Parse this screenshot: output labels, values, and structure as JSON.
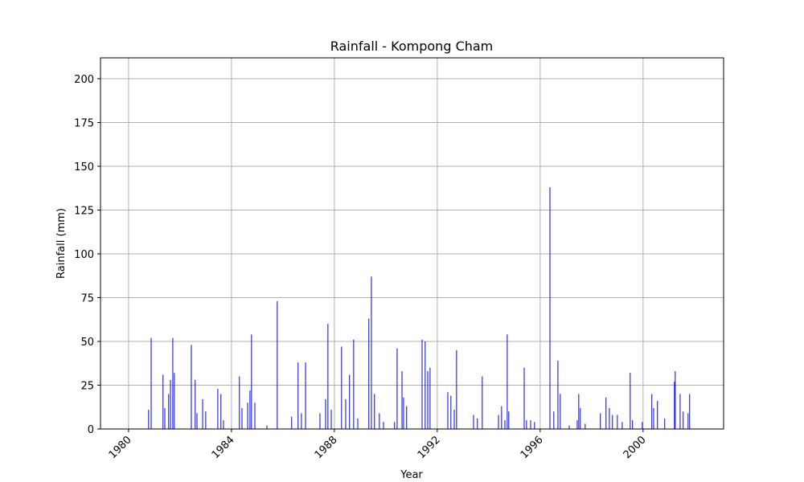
{
  "chart_data": {
    "type": "bar",
    "title": "Rainfall - Kompong Cham",
    "x_label": "Year",
    "y_label": "Rainfall (mm)",
    "color": "#0000ff",
    "grid": true,
    "x": [
      1980.78,
      1980.88,
      1981.34,
      1981.41,
      1981.56,
      1981.63,
      1981.72,
      1981.78,
      1982.44,
      1982.59,
      1982.66,
      1982.88,
      1983.0,
      1983.47,
      1983.59,
      1983.69,
      1984.31,
      1984.41,
      1984.63,
      1984.72,
      1984.78,
      1984.91,
      1985.38,
      1985.78,
      1986.34,
      1986.59,
      1986.72,
      1986.88,
      1987.44,
      1987.66,
      1987.75,
      1987.88,
      1988.28,
      1988.44,
      1988.59,
      1988.75,
      1988.91,
      1989.34,
      1989.44,
      1989.56,
      1989.75,
      1989.91,
      1990.34,
      1990.44,
      1990.63,
      1990.69,
      1990.81,
      1991.41,
      1991.53,
      1991.63,
      1991.72,
      1992.41,
      1992.53,
      1992.66,
      1992.75,
      1993.41,
      1993.56,
      1993.75,
      1994.38,
      1994.5,
      1994.63,
      1994.72,
      1994.78,
      1995.38,
      1995.47,
      1995.63,
      1995.78,
      1996.38,
      1996.53,
      1996.69,
      1996.78,
      1997.13,
      1997.44,
      1997.5,
      1997.56,
      1997.75,
      1998.34,
      1998.56,
      1998.69,
      1998.81,
      1999.0,
      1999.19,
      1999.5,
      1999.59,
      1999.97,
      2000.34,
      2000.41,
      2000.56,
      2000.84,
      2001.22,
      2001.25,
      2001.44,
      2001.56,
      2001.75,
      2001.81
    ],
    "values": [
      11,
      52,
      31,
      12,
      20,
      28,
      52,
      32,
      48,
      28,
      9,
      17,
      10,
      23,
      20,
      5,
      30,
      12,
      15,
      22,
      54,
      15,
      2,
      73,
      7,
      38,
      9,
      38,
      9,
      17,
      60,
      11,
      47,
      17,
      31,
      51,
      6,
      63,
      87,
      20,
      9,
      4,
      4,
      46,
      33,
      18,
      13,
      51,
      50,
      33,
      35,
      21,
      19,
      11,
      45,
      8,
      6,
      30,
      8,
      13,
      5,
      54,
      10,
      35,
      5,
      5,
      4,
      138,
      10,
      39,
      20,
      2,
      5,
      20,
      12,
      3,
      9,
      18,
      12,
      8,
      8,
      4,
      32,
      5,
      4,
      20,
      12,
      16,
      6,
      27,
      33,
      20,
      10,
      9,
      20
    ],
    "xlim": [
      1978.91,
      2003.13
    ],
    "xticks": [
      1980,
      1984,
      1988,
      1992,
      1996,
      2000
    ],
    "ylim": [
      0,
      211.9
    ],
    "yticks": [
      0,
      25,
      50,
      75,
      100,
      125,
      150,
      175,
      200
    ]
  }
}
